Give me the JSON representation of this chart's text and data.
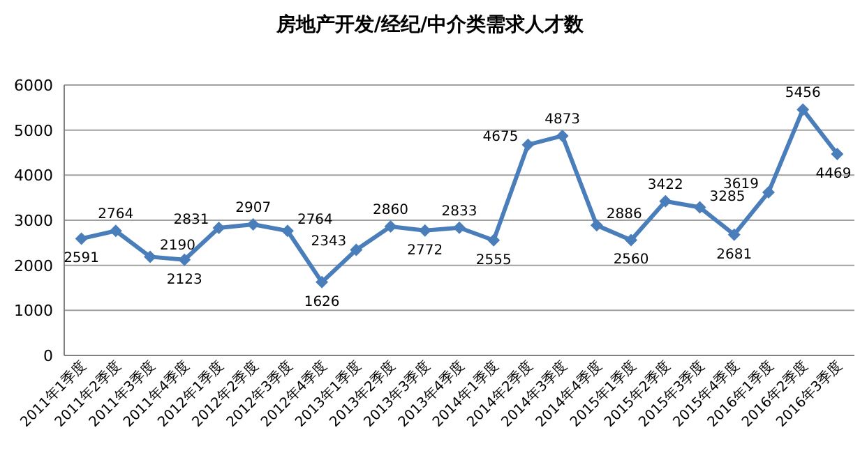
{
  "chart_data": {
    "type": "line",
    "title": "房地产开发/经纪/中介类需求人才数",
    "categories": [
      "2011年1季度",
      "2011年2季度",
      "2011年3季度",
      "2011年4季度",
      "2012年1季度",
      "2012年2季度",
      "2012年3季度",
      "2012年4季度",
      "2013年1季度",
      "2013年2季度",
      "2013年3季度",
      "2013年4季度",
      "2014年1季度",
      "2014年2季度",
      "2014年3季度",
      "2014年4季度",
      "2015年1季度",
      "2015年2季度",
      "2015年3季度",
      "2015年4季度",
      "2016年1季度",
      "2016年2季度",
      "2016年3季度"
    ],
    "series": [
      {
        "color": "#4a7ebb",
        "values": [
          2591,
          2764,
          2190,
          2123,
          2831,
          2907,
          2764,
          1626,
          2343,
          2860,
          2772,
          2833,
          2555,
          4675,
          4873,
          2886,
          2560,
          3422,
          3285,
          2681,
          3619,
          5456,
          4469
        ]
      }
    ],
    "ylim": [
      0,
      6000
    ],
    "yticks": [
      0,
      1000,
      2000,
      3000,
      4000,
      5000,
      6000
    ],
    "grid": "y",
    "marker": "diamond",
    "line_style": "solid",
    "data_labels": true
  }
}
